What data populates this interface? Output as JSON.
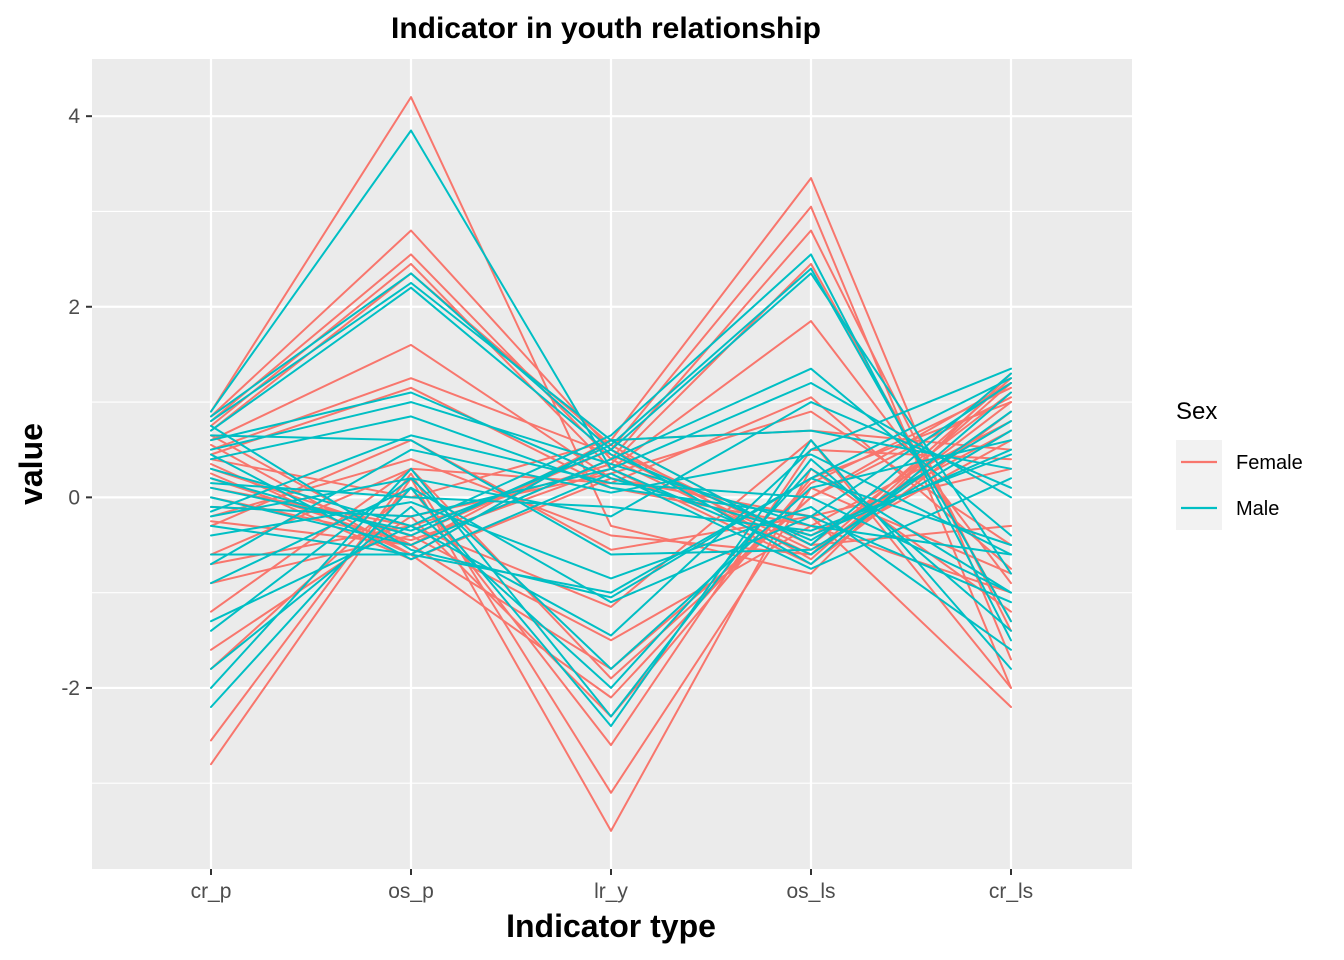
{
  "chart_data": {
    "type": "line",
    "title": "Indicator in youth relationship",
    "xlabel": "Indicator type",
    "ylabel": "value",
    "categories": [
      "cr_p",
      "os_p",
      "lr_y",
      "os_ls",
      "cr_ls"
    ],
    "y_ticks": [
      "4",
      "2",
      "0",
      "-2"
    ],
    "y_tick_values": [
      4,
      2,
      0,
      -2
    ],
    "ylim": [
      -3.9,
      4.6
    ],
    "grid": true,
    "legend": {
      "title": "Sex",
      "position": "right",
      "entries": [
        {
          "label": "Female",
          "color": "#F8766D"
        },
        {
          "label": "Male",
          "color": "#00BFC4"
        }
      ]
    },
    "series": [
      {
        "group": "Female",
        "values": [
          -2.8,
          0.2,
          -3.5,
          0.3,
          -1.2
        ]
      },
      {
        "group": "Female",
        "values": [
          -2.55,
          0.25,
          -3.1,
          0.1,
          -0.8
        ]
      },
      {
        "group": "Female",
        "values": [
          -1.8,
          0.1,
          -2.6,
          0.5,
          0.4
        ]
      },
      {
        "group": "Female",
        "values": [
          -1.6,
          -0.2,
          -2.3,
          0.2,
          1.0
        ]
      },
      {
        "group": "Female",
        "values": [
          -1.2,
          0.3,
          -1.9,
          0.0,
          1.2
        ]
      },
      {
        "group": "Female",
        "values": [
          -0.9,
          -0.4,
          -1.5,
          -0.3,
          0.8
        ]
      },
      {
        "group": "Female",
        "values": [
          -0.7,
          -0.3,
          -1.15,
          0.6,
          -2.0
        ]
      },
      {
        "group": "Female",
        "values": [
          -0.3,
          0.6,
          -0.55,
          -0.2,
          -2.2
        ]
      },
      {
        "group": "Female",
        "values": [
          -0.25,
          -0.5,
          0.6,
          0.7,
          0.5
        ]
      },
      {
        "group": "Female",
        "values": [
          0.9,
          4.2,
          -0.3,
          -0.8,
          1.3
        ]
      },
      {
        "group": "Female",
        "values": [
          0.85,
          2.8,
          0.5,
          -0.5,
          1.1
        ]
      },
      {
        "group": "Female",
        "values": [
          0.8,
          2.55,
          0.4,
          -0.6,
          1.0
        ]
      },
      {
        "group": "Female",
        "values": [
          0.75,
          2.45,
          0.3,
          -0.7,
          0.9
        ]
      },
      {
        "group": "Female",
        "values": [
          0.7,
          2.35,
          0.55,
          -0.65,
          1.2
        ]
      },
      {
        "group": "Female",
        "values": [
          0.6,
          1.6,
          0.2,
          -0.4,
          0.7
        ]
      },
      {
        "group": "Female",
        "values": [
          0.5,
          1.25,
          0.45,
          -0.55,
          0.6
        ]
      },
      {
        "group": "Female",
        "values": [
          0.45,
          1.15,
          0.1,
          -0.3,
          -1.0
        ]
      },
      {
        "group": "Female",
        "values": [
          0.35,
          -0.6,
          0.6,
          3.35,
          -1.7
        ]
      },
      {
        "group": "Female",
        "values": [
          0.3,
          -0.4,
          0.5,
          3.05,
          -2.0
        ]
      },
      {
        "group": "Female",
        "values": [
          0.2,
          -0.5,
          0.4,
          2.8,
          -1.4
        ]
      },
      {
        "group": "Female",
        "values": [
          0.1,
          -0.3,
          0.35,
          2.45,
          -1.3
        ]
      },
      {
        "group": "Female",
        "values": [
          0.0,
          -0.45,
          0.3,
          1.85,
          -0.9
        ]
      },
      {
        "group": "Female",
        "values": [
          -0.1,
          -0.2,
          0.25,
          0.9,
          -0.5
        ]
      },
      {
        "group": "Female",
        "values": [
          0.55,
          -0.6,
          -2.1,
          0.15,
          1.15
        ]
      },
      {
        "group": "Female",
        "values": [
          0.65,
          -0.5,
          -1.8,
          0.0,
          1.05
        ]
      },
      {
        "group": "Female",
        "values": [
          0.4,
          0.0,
          0.6,
          -0.5,
          -0.3
        ]
      },
      {
        "group": "Female",
        "values": [
          -0.6,
          0.3,
          0.15,
          1.05,
          -0.75
        ]
      },
      {
        "group": "Female",
        "values": [
          0.25,
          -0.65,
          0.2,
          -0.2,
          0.3
        ]
      },
      {
        "group": "Female",
        "values": [
          -0.2,
          0.4,
          -0.4,
          -0.6,
          1.25
        ]
      },
      {
        "group": "Male",
        "values": [
          -2.2,
          0.1,
          -2.4,
          0.6,
          -1.8
        ]
      },
      {
        "group": "Male",
        "values": [
          -2.0,
          0.3,
          -2.3,
          0.4,
          -1.4
        ]
      },
      {
        "group": "Male",
        "values": [
          -1.8,
          -0.1,
          -2.0,
          0.3,
          -1.0
        ]
      },
      {
        "group": "Male",
        "values": [
          -1.4,
          0.2,
          -1.8,
          0.1,
          0.6
        ]
      },
      {
        "group": "Male",
        "values": [
          -1.3,
          -0.3,
          -1.45,
          0.5,
          1.35
        ]
      },
      {
        "group": "Male",
        "values": [
          -0.9,
          0.1,
          -1.1,
          -0.2,
          1.2
        ]
      },
      {
        "group": "Male",
        "values": [
          -0.6,
          -0.6,
          -1.0,
          0.2,
          -0.5
        ]
      },
      {
        "group": "Male",
        "values": [
          -0.4,
          -0.05,
          -0.85,
          -0.1,
          -1.6
        ]
      },
      {
        "group": "Male",
        "values": [
          -0.2,
          0.2,
          -0.2,
          1.0,
          0.1
        ]
      },
      {
        "group": "Male",
        "values": [
          0.9,
          3.85,
          0.3,
          -0.6,
          0.9
        ]
      },
      {
        "group": "Male",
        "values": [
          0.85,
          2.35,
          0.5,
          -0.7,
          1.1
        ]
      },
      {
        "group": "Male",
        "values": [
          0.8,
          2.25,
          0.6,
          -0.5,
          1.3
        ]
      },
      {
        "group": "Male",
        "values": [
          0.7,
          2.2,
          0.45,
          -0.45,
          0.8
        ]
      },
      {
        "group": "Male",
        "values": [
          0.6,
          1.1,
          0.2,
          -0.4,
          0.5
        ]
      },
      {
        "group": "Male",
        "values": [
          0.5,
          1.0,
          0.35,
          -0.3,
          -0.6
        ]
      },
      {
        "group": "Male",
        "values": [
          0.4,
          0.85,
          0.1,
          -0.2,
          -1.1
        ]
      },
      {
        "group": "Male",
        "values": [
          0.3,
          -0.3,
          0.65,
          2.55,
          -1.5
        ]
      },
      {
        "group": "Male",
        "values": [
          0.2,
          -0.4,
          0.55,
          2.4,
          -1.3
        ]
      },
      {
        "group": "Male",
        "values": [
          0.1,
          -0.35,
          0.5,
          2.35,
          -0.8
        ]
      },
      {
        "group": "Male",
        "values": [
          0.0,
          -0.5,
          0.4,
          1.35,
          -0.4
        ]
      },
      {
        "group": "Male",
        "values": [
          -0.1,
          -0.2,
          0.3,
          1.2,
          0.0
        ]
      },
      {
        "group": "Male",
        "values": [
          -0.3,
          -0.6,
          0.6,
          0.7,
          0.3
        ]
      },
      {
        "group": "Male",
        "values": [
          0.75,
          -0.55,
          -1.05,
          0.2,
          1.25
        ]
      },
      {
        "group": "Male",
        "values": [
          0.65,
          0.6,
          -0.6,
          -0.55,
          0.7
        ]
      },
      {
        "group": "Male",
        "values": [
          -0.7,
          0.5,
          0.05,
          0.45,
          -0.6
        ]
      },
      {
        "group": "Male",
        "values": [
          0.45,
          -0.65,
          0.25,
          -0.75,
          0.2
        ]
      },
      {
        "group": "Male",
        "values": [
          -0.15,
          0.65,
          0.15,
          0.0,
          -1.0
        ]
      },
      {
        "group": "Male",
        "values": [
          0.15,
          0.0,
          -0.1,
          -0.35,
          0.45
        ]
      }
    ]
  }
}
